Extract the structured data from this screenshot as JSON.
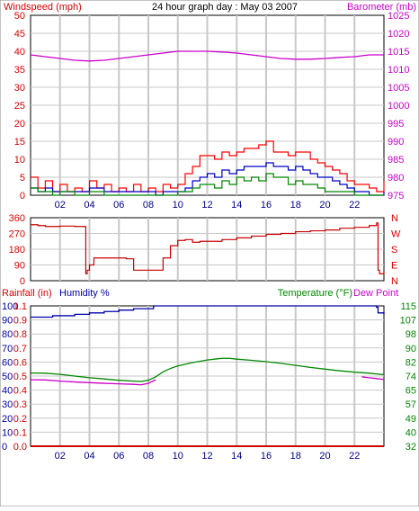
{
  "title": "24 hour graph day : May 03 2007",
  "colors": {
    "wind": "#ff0000",
    "gust": "#0000cc",
    "avg": "#008800",
    "baro": "#cc00cc",
    "dir": "#cc0000",
    "humidity": "#0000aa",
    "temp": "#008800",
    "dew": "#cc00cc",
    "rain": "#cc0000",
    "grid": "#c8c8c8",
    "axis": "#000000"
  },
  "chart_data": [
    {
      "type": "line",
      "left_label": "Windspeed (mph)",
      "right_label": "Barometer (mb)",
      "x_ticks": [
        "02",
        "04",
        "06",
        "08",
        "10",
        "12",
        "14",
        "16",
        "18",
        "20",
        "22"
      ],
      "x_range": [
        0,
        24
      ],
      "yleft_ticks": [
        "0",
        "5",
        "10",
        "15",
        "20",
        "25",
        "30",
        "35",
        "40",
        "45",
        "50"
      ],
      "yleft_range": [
        0,
        50
      ],
      "yright_ticks": [
        "975",
        "980",
        "985",
        "990",
        "995",
        "1000",
        "1005",
        "1010",
        "1015",
        "1020",
        "1025"
      ],
      "yright_range": [
        975,
        1025
      ],
      "series": [
        {
          "key": "wind",
          "axis": "left",
          "x": [
            0,
            0.5,
            1,
            1.5,
            2,
            2.5,
            3,
            3.5,
            4,
            4.5,
            5,
            5.5,
            6,
            6.5,
            7,
            7.5,
            8,
            8.5,
            9,
            9.5,
            10,
            10.5,
            11,
            11.5,
            12,
            12.5,
            13,
            13.5,
            14,
            14.5,
            15,
            15.5,
            16,
            16.5,
            17,
            17.5,
            18,
            18.5,
            19,
            19.5,
            20,
            20.5,
            21,
            21.5,
            22,
            22.5,
            23,
            23.5,
            24
          ],
          "y": [
            5,
            2,
            4,
            1,
            3,
            1,
            2,
            1,
            4,
            2,
            3,
            1,
            2,
            1,
            3,
            1,
            2,
            1,
            3,
            2,
            3,
            6,
            8,
            11,
            11,
            10,
            12,
            11,
            12,
            13,
            13,
            14,
            15,
            12,
            12,
            11,
            12,
            12,
            10,
            9,
            8,
            7,
            6,
            4,
            3,
            3,
            2,
            1,
            4
          ]
        },
        {
          "key": "gust",
          "axis": "left",
          "x": [
            0,
            0.5,
            1,
            1.5,
            2,
            3,
            4,
            5,
            6,
            7,
            8,
            8.5,
            9,
            9.5,
            10,
            10.5,
            11,
            11.5,
            12,
            12.5,
            13,
            13.5,
            14,
            14.5,
            15,
            15.5,
            16,
            16.5,
            17,
            17.5,
            18,
            18.5,
            19,
            19.5,
            20,
            20.5,
            21,
            21.5,
            22,
            22.5,
            23,
            23.5,
            24
          ],
          "y": [
            2,
            1,
            2,
            1,
            1,
            1,
            2,
            1,
            1,
            1,
            1,
            0,
            1,
            1,
            1,
            2,
            4,
            5,
            6,
            5,
            7,
            6,
            7,
            8,
            8,
            8,
            9,
            8,
            8,
            7,
            8,
            7,
            6,
            5,
            5,
            4,
            3,
            2,
            1,
            1,
            0,
            0,
            1
          ]
        },
        {
          "key": "avg",
          "axis": "left",
          "x": [
            0,
            0.5,
            1,
            1.5,
            2,
            3,
            4,
            5,
            6,
            7,
            8,
            9,
            10,
            10.5,
            11,
            11.5,
            12,
            12.5,
            13,
            13.5,
            14,
            14.5,
            15,
            15.5,
            16,
            16.5,
            17,
            17.5,
            18,
            18.5,
            19,
            19.5,
            20,
            21,
            22,
            23,
            24
          ],
          "y": [
            2,
            1,
            1,
            0,
            1,
            0,
            1,
            0,
            0,
            0,
            0,
            0,
            1,
            1,
            2,
            3,
            3,
            2,
            4,
            3,
            5,
            4,
            5,
            4,
            6,
            5,
            5,
            3,
            4,
            3,
            3,
            2,
            1,
            1,
            0,
            0,
            0
          ]
        },
        {
          "key": "baro",
          "axis": "right",
          "x": [
            0,
            1,
            2,
            3,
            4,
            5,
            6,
            7,
            8,
            9,
            10,
            11,
            12,
            13,
            14,
            15,
            16,
            17,
            18,
            19,
            20,
            21,
            22,
            23,
            24
          ],
          "y": [
            1014,
            1013.5,
            1013,
            1012.5,
            1012.3,
            1012.5,
            1013,
            1013.5,
            1014,
            1014.5,
            1015,
            1015,
            1015,
            1014.8,
            1014.5,
            1014,
            1013.5,
            1013,
            1012.8,
            1012.8,
            1013,
            1013.3,
            1013.5,
            1014,
            1014
          ]
        }
      ]
    },
    {
      "type": "scatter",
      "left_ticks": [
        "360",
        "270",
        "180",
        "90",
        "0"
      ],
      "y_range": [
        0,
        360
      ],
      "right_ticks": [
        "N",
        "W",
        "S",
        "E",
        "N"
      ],
      "series": [
        {
          "key": "dir",
          "x": [
            0,
            0.5,
            1,
            2,
            3,
            3.7,
            3.75,
            3.85,
            4,
            4.3,
            4.6,
            5,
            5.5,
            6,
            6.5,
            7,
            7.5,
            8,
            8.5,
            9,
            9.5,
            10,
            10.5,
            11,
            11.5,
            12,
            13,
            14,
            15,
            16,
            17,
            18,
            19,
            20,
            21,
            22,
            23,
            23.5,
            23.6,
            23.7,
            24
          ],
          "y": [
            320,
            315,
            310,
            312,
            310,
            308,
            40,
            60,
            90,
            130,
            130,
            130,
            130,
            130,
            125,
            60,
            60,
            60,
            60,
            130,
            200,
            230,
            235,
            220,
            225,
            225,
            235,
            245,
            255,
            265,
            270,
            280,
            285,
            290,
            300,
            305,
            315,
            330,
            60,
            40,
            50
          ]
        }
      ]
    },
    {
      "type": "line",
      "left_labels": {
        "rain": "Rainfall (in)",
        "humidity": "Humidity %"
      },
      "right_labels": {
        "temp": "Temperature (°F)",
        "dew": "Dew Point"
      },
      "x_ticks": [
        "02",
        "04",
        "06",
        "08",
        "10",
        "12",
        "14",
        "16",
        "18",
        "20",
        "22"
      ],
      "x_range": [
        0,
        24
      ],
      "humidity_ticks": [
        "0",
        "10",
        "20",
        "30",
        "40",
        "50",
        "60",
        "70",
        "80",
        "90",
        "100"
      ],
      "humidity_range": [
        0,
        100
      ],
      "rain_ticks": [
        "0.0",
        "0.1",
        "0.2",
        "0.3",
        "0.4",
        "0.5",
        "0.6",
        "0.7",
        "0.8",
        "0.9",
        "1.1"
      ],
      "rain_range": [
        0,
        1
      ],
      "temp_ticks": [
        "32",
        "40",
        "49",
        "57",
        "65",
        "74",
        "82",
        "90",
        "98",
        "107",
        "115"
      ],
      "temp_range": [
        32,
        115
      ],
      "series": [
        {
          "key": "humidity",
          "axis": "humidity",
          "x": [
            0,
            0.5,
            1,
            1.5,
            2,
            2.5,
            3,
            3.5,
            4,
            4.5,
            5,
            5.5,
            6,
            6.5,
            7,
            7.5,
            8,
            8.3,
            8.35,
            9,
            10,
            12,
            14,
            16,
            18,
            20,
            22,
            23,
            23.5,
            23.6,
            24
          ],
          "y": [
            92,
            92,
            92,
            93,
            93,
            93,
            94,
            94,
            95,
            95,
            96,
            96,
            97,
            97,
            98,
            98,
            98,
            98,
            100,
            100,
            100,
            100,
            100,
            100,
            100,
            100,
            100,
            100,
            99,
            95,
            94
          ]
        },
        {
          "key": "temp",
          "axis": "temp",
          "x": [
            0,
            1,
            2,
            3,
            4,
            5,
            6,
            7,
            7.5,
            8,
            8.5,
            9,
            9.5,
            10,
            10.5,
            11,
            11.5,
            12,
            12.5,
            13,
            13.5,
            14,
            15,
            16,
            17,
            18,
            19,
            20,
            21,
            22,
            23,
            24
          ],
          "y": [
            75.3,
            75.2,
            74.5,
            73.5,
            72.5,
            71.8,
            71.0,
            70.5,
            70.3,
            71,
            73,
            76,
            78,
            79.5,
            80.5,
            81.5,
            82.2,
            83,
            83.5,
            84,
            84,
            83.5,
            82.8,
            82.0,
            81,
            79.8,
            78.6,
            77.6,
            76.6,
            75.8,
            75.2,
            74.3
          ]
        },
        {
          "key": "dew",
          "axis": "temp",
          "x": [
            0,
            1,
            2,
            3,
            4,
            5,
            6,
            7,
            7.5,
            8,
            8.5
          ],
          "y": [
            71.3,
            71.2,
            70.5,
            70.0,
            69.6,
            69.2,
            68.9,
            68.6,
            68.3,
            69.2,
            71.3
          ]
        },
        {
          "key": "dew_tail",
          "axis": "temp",
          "x": [
            22.5,
            23,
            23.5,
            24
          ],
          "y": [
            73,
            72.5,
            72,
            71.5
          ]
        },
        {
          "key": "rain",
          "axis": "rain",
          "x": [
            0,
            24
          ],
          "y": [
            0,
            0
          ]
        }
      ]
    }
  ]
}
